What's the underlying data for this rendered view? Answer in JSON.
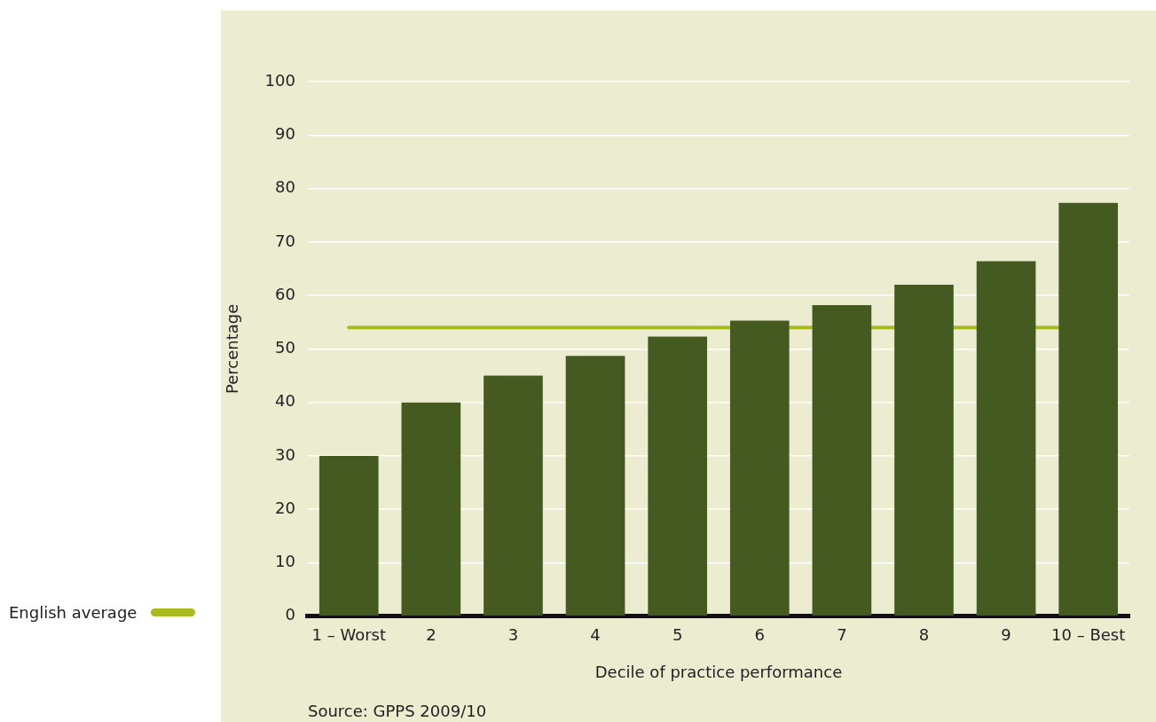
{
  "chart_data": {
    "type": "bar",
    "xlabel": "Decile of practice performance",
    "ylabel": "Percentage",
    "categories": [
      "1 – Worst",
      "2",
      "3",
      "4",
      "5",
      "6",
      "7",
      "8",
      "9",
      "10 – Best"
    ],
    "values": [
      30,
      40,
      45,
      48.7,
      52.3,
      55.3,
      58.2,
      62,
      66.4,
      77.3
    ],
    "color": "#445a20",
    "ylim": [
      0,
      100
    ],
    "yticks": [
      0,
      10,
      20,
      30,
      40,
      50,
      60,
      70,
      80,
      90,
      100
    ],
    "grid": "y",
    "ref_lines": [
      {
        "axis": "y",
        "value": 54,
        "label": "English average",
        "color": "#a9ba1e"
      }
    ],
    "annotations": [
      "Source: GPPS 2009/10"
    ]
  }
}
